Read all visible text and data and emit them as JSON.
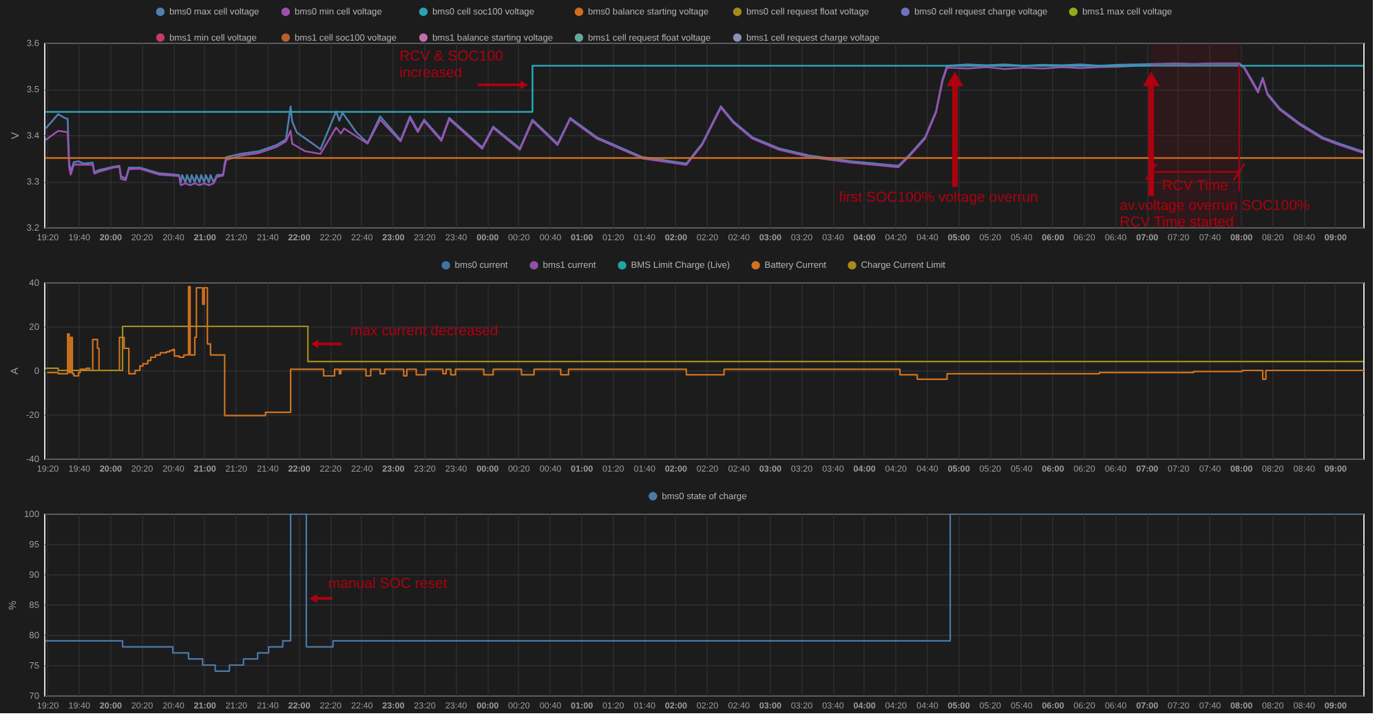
{
  "chart_data": [
    {
      "type": "line",
      "ylabel": "V",
      "xlim": [
        "2000-01-01T19:18",
        "2000-01-02T09:18"
      ],
      "ylim": [
        3.2,
        3.6
      ],
      "yticks": [
        3.2,
        3.3,
        3.4,
        3.5,
        3.6
      ],
      "xticks": [
        {
          "value": "2000-01-01T19:20",
          "label": "19:20"
        },
        {
          "value": "2000-01-01T19:40",
          "label": "19:40"
        },
        {
          "value": "2000-01-01T20:00",
          "label": "20:00"
        },
        {
          "value": "2000-01-01T20:20",
          "label": "20:20"
        },
        {
          "value": "2000-01-01T20:40",
          "label": "20:40"
        },
        {
          "value": "2000-01-01T21:00",
          "label": "21:00"
        },
        {
          "value": "2000-01-01T21:20",
          "label": "21:20"
        },
        {
          "value": "2000-01-01T21:40",
          "label": "21:40"
        },
        {
          "value": "2000-01-01T22:00",
          "label": "22:00"
        },
        {
          "value": "2000-01-01T22:20",
          "label": "22:20"
        },
        {
          "value": "2000-01-01T22:40",
          "label": "22:40"
        },
        {
          "value": "2000-01-01T23:00",
          "label": "23:00"
        },
        {
          "value": "2000-01-01T23:20",
          "label": "23:20"
        },
        {
          "value": "2000-01-01T23:40",
          "label": "23:40"
        },
        {
          "value": "2000-01-02T00:00",
          "label": "00:00"
        },
        {
          "value": "2000-01-02T00:20",
          "label": "00:20"
        },
        {
          "value": "2000-01-02T00:40",
          "label": "00:40"
        },
        {
          "value": "2000-01-02T01:00",
          "label": "01:00"
        },
        {
          "value": "2000-01-02T01:20",
          "label": "01:20"
        },
        {
          "value": "2000-01-02T01:40",
          "label": "01:40"
        },
        {
          "value": "2000-01-02T02:00",
          "label": "02:00"
        },
        {
          "value": "2000-01-02T02:20",
          "label": "02:20"
        },
        {
          "value": "2000-01-02T02:40",
          "label": "02:40"
        },
        {
          "value": "2000-01-02T03:00",
          "label": "03:00"
        },
        {
          "value": "2000-01-02T03:20",
          "label": "03:20"
        },
        {
          "value": "2000-01-02T03:40",
          "label": "03:40"
        },
        {
          "value": "2000-01-02T04:00",
          "label": "04:00"
        },
        {
          "value": "2000-01-02T04:20",
          "label": "04:20"
        },
        {
          "value": "2000-01-02T04:40",
          "label": "04:40"
        },
        {
          "value": "2000-01-02T05:00",
          "label": "05:00"
        },
        {
          "value": "2000-01-02T05:20",
          "label": "05:20"
        },
        {
          "value": "2000-01-02T05:40",
          "label": "05:40"
        },
        {
          "value": "2000-01-02T06:00",
          "label": "06:00"
        },
        {
          "value": "2000-01-02T06:20",
          "label": "06:20"
        },
        {
          "value": "2000-01-02T06:40",
          "label": "06:40"
        },
        {
          "value": "2000-01-02T07:00",
          "label": "07:00"
        },
        {
          "value": "2000-01-02T07:20",
          "label": "07:20"
        },
        {
          "value": "2000-01-02T07:40",
          "label": "07:40"
        },
        {
          "value": "2000-01-02T08:00",
          "label": "08:00"
        },
        {
          "value": "2000-01-02T08:20",
          "label": "08:20"
        },
        {
          "value": "2000-01-02T08:40",
          "label": "08:40"
        },
        {
          "value": "2000-01-02T09:00",
          "label": "09:00"
        }
      ],
      "grid": true,
      "legend": "top",
      "series": [
        {
          "name": "bms0 max cell voltage",
          "color": "#4f80b0",
          "x": [
            "2000-01-01T19:19",
            "2000-01-01T19:27",
            "2000-01-01T19:31",
            "2000-01-01T19:33",
            "2000-01-01T19:34",
            "2000-01-01T19:35",
            "2000-01-01T19:37",
            "2000-01-01T19:40",
            "2000-01-01T19:43",
            "2000-01-01T19:49",
            "2000-01-01T19:50",
            "2000-01-01T19:53",
            "2000-01-01T20:02",
            "2000-01-01T20:06",
            "2000-01-01T20:07",
            "2000-01-01T20:10",
            "2000-01-01T20:12",
            "2000-01-01T20:19",
            "2000-01-01T20:31",
            "2000-01-01T20:44",
            "2000-01-01T20:45",
            "2000-01-01T20:46",
            "2000-01-01T20:48",
            "2000-01-01T20:49",
            "2000-01-01T20:51",
            "2000-01-01T20:52",
            "2000-01-01T20:54",
            "2000-01-01T20:55",
            "2000-01-01T20:57",
            "2000-01-01T20:58",
            "2000-01-01T21:00",
            "2000-01-01T21:01",
            "2000-01-01T21:03",
            "2000-01-01T21:04",
            "2000-01-01T21:06",
            "2000-01-01T21:08",
            "2000-01-01T21:12",
            "2000-01-01T21:13",
            "2000-01-01T21:14",
            "2000-01-01T21:23",
            "2000-01-01T21:35",
            "2000-01-01T21:46",
            "2000-01-01T21:52",
            "2000-01-01T21:55",
            "2000-01-01T21:56",
            "2000-01-01T21:59",
            "2000-01-01T22:07",
            "2000-01-01T22:14",
            "2000-01-01T22:24",
            "2000-01-01T22:26",
            "2000-01-01T22:28",
            "2000-01-01T22:37",
            "2000-01-01T22:44",
            "2000-01-01T22:52",
            "2000-01-01T23:05",
            "2000-01-01T23:11",
            "2000-01-01T23:16",
            "2000-01-01T23:20",
            "2000-01-01T23:31",
            "2000-01-01T23:36",
            "2000-01-01T23:57",
            "2000-01-02T00:04",
            "2000-01-02T00:21",
            "2000-01-02T00:29",
            "2000-01-02T00:45",
            "2000-01-02T00:53",
            "2000-01-02T01:10",
            "2000-01-02T01:39",
            "2000-01-02T02:07",
            "2000-01-02T02:17",
            "2000-01-02T02:29",
            "2000-01-02T02:37",
            "2000-01-02T02:49",
            "2000-01-02T03:06",
            "2000-01-02T03:26",
            "2000-01-02T03:52",
            "2000-01-02T04:22",
            "2000-01-02T04:29",
            "2000-01-02T04:39",
            "2000-01-02T04:46",
            "2000-01-02T04:50",
            "2000-01-02T04:53",
            "2000-01-02T05:06",
            "2000-01-02T05:18",
            "2000-01-02T05:30",
            "2000-01-02T05:42",
            "2000-01-02T05:54",
            "2000-01-02T06:06",
            "2000-01-02T06:18",
            "2000-01-02T06:30",
            "2000-01-02T06:42",
            "2000-01-02T06:54",
            "2000-01-02T07:06",
            "2000-01-02T07:18",
            "2000-01-02T07:30",
            "2000-01-02T07:42",
            "2000-01-02T07:54",
            "2000-01-02T07:59",
            "2000-01-02T08:02",
            "2000-01-02T08:07",
            "2000-01-02T08:11",
            "2000-01-02T08:14",
            "2000-01-02T08:17",
            "2000-01-02T08:25",
            "2000-01-02T08:38",
            "2000-01-02T08:52",
            "2000-01-02T09:03",
            "2000-01-02T09:18"
          ],
          "values": [
            3.414,
            3.445,
            3.437,
            3.435,
            3.338,
            3.321,
            3.341,
            3.343,
            3.338,
            3.34,
            3.319,
            3.324,
            3.331,
            3.333,
            3.311,
            3.305,
            3.329,
            3.329,
            3.317,
            3.313,
            3.297,
            3.313,
            3.297,
            3.313,
            3.297,
            3.313,
            3.297,
            3.313,
            3.297,
            3.313,
            3.297,
            3.313,
            3.297,
            3.313,
            3.297,
            3.313,
            3.314,
            3.338,
            3.352,
            3.359,
            3.365,
            3.378,
            3.39,
            3.462,
            3.429,
            3.405,
            3.386,
            3.369,
            3.451,
            3.431,
            3.448,
            3.405,
            3.383,
            3.44,
            3.389,
            3.44,
            3.409,
            3.433,
            3.39,
            3.437,
            3.373,
            3.418,
            3.371,
            3.433,
            3.381,
            3.437,
            3.395,
            3.352,
            3.338,
            3.381,
            3.462,
            3.429,
            3.395,
            3.371,
            3.355,
            3.343,
            3.333,
            3.357,
            3.395,
            3.452,
            3.519,
            3.55,
            3.553,
            3.551,
            3.553,
            3.55,
            3.552,
            3.551,
            3.553,
            3.55,
            3.552,
            3.553,
            3.554,
            3.555,
            3.554,
            3.555,
            3.555,
            3.555,
            3.548,
            3.519,
            3.495,
            3.524,
            3.49,
            3.457,
            3.424,
            3.395,
            3.381,
            3.364
          ]
        },
        {
          "name": "bms0 min cell voltage",
          "color": "#9d4fb0",
          "x": [
            "2000-01-01T19:19",
            "2000-01-01T19:27",
            "2000-01-01T19:33",
            "2000-01-01T19:34",
            "2000-01-01T19:35",
            "2000-01-01T19:37",
            "2000-01-01T19:49",
            "2000-01-01T19:50",
            "2000-01-01T19:53",
            "2000-01-01T20:02",
            "2000-01-01T20:06",
            "2000-01-01T20:07",
            "2000-01-01T20:10",
            "2000-01-01T20:12",
            "2000-01-01T20:19",
            "2000-01-01T20:31",
            "2000-01-01T20:44",
            "2000-01-01T20:45",
            "2000-01-01T20:48",
            "2000-01-01T20:51",
            "2000-01-01T20:54",
            "2000-01-01T20:57",
            "2000-01-01T21:00",
            "2000-01-01T21:03",
            "2000-01-01T21:06",
            "2000-01-01T21:08",
            "2000-01-01T21:12",
            "2000-01-01T21:13",
            "2000-01-01T21:14",
            "2000-01-01T21:23",
            "2000-01-01T21:35",
            "2000-01-01T21:46",
            "2000-01-01T21:52",
            "2000-01-01T21:55",
            "2000-01-01T21:56",
            "2000-01-01T22:04",
            "2000-01-01T22:14",
            "2000-01-01T22:24",
            "2000-01-01T22:27",
            "2000-01-01T22:29",
            "2000-01-01T22:44",
            "2000-01-01T22:52",
            "2000-01-01T23:05",
            "2000-01-01T23:11",
            "2000-01-01T23:16",
            "2000-01-01T23:20",
            "2000-01-01T23:31",
            "2000-01-01T23:36",
            "2000-01-01T23:57",
            "2000-01-02T00:04",
            "2000-01-02T00:21",
            "2000-01-02T00:29",
            "2000-01-02T00:45",
            "2000-01-02T00:53",
            "2000-01-02T01:10",
            "2000-01-02T01:39",
            "2000-01-02T02:07",
            "2000-01-02T02:17",
            "2000-01-02T02:29",
            "2000-01-02T02:37",
            "2000-01-02T02:49",
            "2000-01-02T03:06",
            "2000-01-02T03:26",
            "2000-01-02T03:52",
            "2000-01-02T04:22",
            "2000-01-02T04:29",
            "2000-01-02T04:39",
            "2000-01-02T04:46",
            "2000-01-02T04:50",
            "2000-01-02T04:53",
            "2000-01-02T05:06",
            "2000-01-02T05:18",
            "2000-01-02T05:30",
            "2000-01-02T05:42",
            "2000-01-02T05:54",
            "2000-01-02T06:06",
            "2000-01-02T06:18",
            "2000-01-02T06:30",
            "2000-01-02T06:42",
            "2000-01-02T06:54",
            "2000-01-02T07:06",
            "2000-01-02T07:18",
            "2000-01-02T07:30",
            "2000-01-02T07:42",
            "2000-01-02T07:54",
            "2000-01-02T07:59",
            "2000-01-02T08:02",
            "2000-01-02T08:07",
            "2000-01-02T08:11",
            "2000-01-02T08:14",
            "2000-01-02T08:17",
            "2000-01-02T08:25",
            "2000-01-02T08:38",
            "2000-01-02T08:52",
            "2000-01-02T09:03",
            "2000-01-02T09:18"
          ],
          "values": [
            3.389,
            3.409,
            3.406,
            3.329,
            3.314,
            3.336,
            3.335,
            3.316,
            3.32,
            3.329,
            3.331,
            3.305,
            3.302,
            3.326,
            3.327,
            3.314,
            3.311,
            3.291,
            3.295,
            3.291,
            3.295,
            3.291,
            3.295,
            3.291,
            3.295,
            3.309,
            3.312,
            3.331,
            3.346,
            3.355,
            3.361,
            3.374,
            3.386,
            3.409,
            3.381,
            3.365,
            3.359,
            3.416,
            3.403,
            3.414,
            3.381,
            3.433,
            3.386,
            3.436,
            3.406,
            3.43,
            3.387,
            3.434,
            3.37,
            3.415,
            3.368,
            3.43,
            3.378,
            3.434,
            3.392,
            3.349,
            3.335,
            3.378,
            3.459,
            3.426,
            3.392,
            3.368,
            3.352,
            3.34,
            3.33,
            3.354,
            3.392,
            3.449,
            3.515,
            3.546,
            3.544,
            3.547,
            3.543,
            3.546,
            3.544,
            3.547,
            3.545,
            3.547,
            3.548,
            3.55,
            3.552,
            3.553,
            3.552,
            3.554,
            3.553,
            3.553,
            3.546,
            3.516,
            3.492,
            3.521,
            3.487,
            3.454,
            3.421,
            3.392,
            3.378,
            3.361
          ]
        },
        {
          "name": "bms0 cell soc100 voltage",
          "color": "#2aa3b3",
          "type": "step",
          "x": [
            "2000-01-01T19:19",
            "2000-01-02T00:29",
            "2000-01-02T09:18"
          ],
          "values": [
            3.45,
            3.55,
            3.55
          ]
        },
        {
          "name": "bms0 balance starting voltage",
          "color": "#cf6f1c",
          "x": [
            "2000-01-01T19:19",
            "2000-01-02T09:18"
          ],
          "values": [
            3.35,
            3.35
          ]
        },
        {
          "name": "bms0 cell request float voltage",
          "color": "#a58a1c"
        },
        {
          "name": "bms0 cell request charge voltage",
          "color": "#6f71c0"
        },
        {
          "name": "bms1 max cell voltage",
          "color": "#8fae1b"
        },
        {
          "name": "bms1 min cell voltage",
          "color": "#c33a6b"
        },
        {
          "name": "bms1 cell soc100 voltage",
          "color": "#b8602b"
        },
        {
          "name": "bms1 balance starting voltage",
          "color": "#c46cac"
        },
        {
          "name": "bms1 cell request float voltage",
          "color": "#61a89e"
        },
        {
          "name": "bms1 cell request charge voltage",
          "color": "#8a90b8"
        }
      ],
      "annotations": [
        {
          "text": "RCV & SOC100\nincreased",
          "x": "2000-01-02T00:29",
          "y": 3.5
        },
        {
          "text": "first SOC100% voltage overrun",
          "x": "2000-01-02T04:58",
          "y": 3.55
        },
        {
          "text": "av.voltage overrun SOC100%\nRCV Time started",
          "x": "2000-01-02T07:03",
          "y": 3.55
        }
      ],
      "bands": [
        {
          "axis": "x",
          "from": "2000-01-02T07:03",
          "to": "2000-01-02T07:59",
          "label": "RCV Time",
          "color": "#b0000e"
        }
      ]
    },
    {
      "type": "step",
      "ylabel": "A",
      "xlim": [
        "2000-01-01T19:18",
        "2000-01-02T09:18"
      ],
      "ylim": [
        -40,
        40
      ],
      "yticks": [
        -40,
        -20,
        0,
        20,
        40
      ],
      "xticks": [
        {
          "value": "2000-01-01T19:20",
          "label": "19:20"
        },
        {
          "value": "2000-01-01T19:40",
          "label": "19:40"
        },
        {
          "value": "2000-01-01T20:00",
          "label": "20:00"
        },
        {
          "value": "2000-01-01T20:20",
          "label": "20:20"
        },
        {
          "value": "2000-01-01T20:40",
          "label": "20:40"
        },
        {
          "value": "2000-01-01T21:00",
          "label": "21:00"
        },
        {
          "value": "2000-01-01T21:20",
          "label": "21:20"
        },
        {
          "value": "2000-01-01T21:40",
          "label": "21:40"
        },
        {
          "value": "2000-01-01T22:00",
          "label": "22:00"
        },
        {
          "value": "2000-01-01T22:20",
          "label": "22:20"
        },
        {
          "value": "2000-01-01T22:40",
          "label": "22:40"
        },
        {
          "value": "2000-01-01T23:00",
          "label": "23:00"
        },
        {
          "value": "2000-01-01T23:20",
          "label": "23:20"
        },
        {
          "value": "2000-01-01T23:40",
          "label": "23:40"
        },
        {
          "value": "2000-01-02T00:00",
          "label": "00:00"
        },
        {
          "value": "2000-01-02T00:20",
          "label": "00:20"
        },
        {
          "value": "2000-01-02T00:40",
          "label": "00:40"
        },
        {
          "value": "2000-01-02T01:00",
          "label": "01:00"
        },
        {
          "value": "2000-01-02T01:20",
          "label": "01:20"
        },
        {
          "value": "2000-01-02T01:40",
          "label": "01:40"
        },
        {
          "value": "2000-01-02T02:00",
          "label": "02:00"
        },
        {
          "value": "2000-01-02T02:20",
          "label": "02:20"
        },
        {
          "value": "2000-01-02T02:40",
          "label": "02:40"
        },
        {
          "value": "2000-01-02T03:00",
          "label": "03:00"
        },
        {
          "value": "2000-01-02T03:20",
          "label": "03:20"
        },
        {
          "value": "2000-01-02T03:40",
          "label": "03:40"
        },
        {
          "value": "2000-01-02T04:00",
          "label": "04:00"
        },
        {
          "value": "2000-01-02T04:20",
          "label": "04:20"
        },
        {
          "value": "2000-01-02T04:40",
          "label": "04:40"
        },
        {
          "value": "2000-01-02T05:00",
          "label": "05:00"
        },
        {
          "value": "2000-01-02T05:20",
          "label": "05:20"
        },
        {
          "value": "2000-01-02T05:40",
          "label": "05:40"
        },
        {
          "value": "2000-01-02T06:00",
          "label": "06:00"
        },
        {
          "value": "2000-01-02T06:20",
          "label": "06:20"
        },
        {
          "value": "2000-01-02T06:40",
          "label": "06:40"
        },
        {
          "value": "2000-01-02T07:00",
          "label": "07:00"
        },
        {
          "value": "2000-01-02T07:20",
          "label": "07:20"
        },
        {
          "value": "2000-01-02T07:40",
          "label": "07:40"
        },
        {
          "value": "2000-01-02T08:00",
          "label": "08:00"
        },
        {
          "value": "2000-01-02T08:20",
          "label": "08:20"
        },
        {
          "value": "2000-01-02T08:40",
          "label": "08:40"
        },
        {
          "value": "2000-01-02T09:00",
          "label": "09:00"
        }
      ],
      "grid": true,
      "legend": "top",
      "series": [
        {
          "name": "bms0 current",
          "color": "#4273a6"
        },
        {
          "name": "bms1 current",
          "color": "#9150a8"
        },
        {
          "name": "BMS Limit Charge (Live)",
          "color": "#23a3a6"
        },
        {
          "name": "Battery Current",
          "color": "#d0731f",
          "x": [
            "2000-01-01T19:20",
            "2000-01-01T19:27",
            "2000-01-01T19:33",
            "2000-01-01T19:34",
            "2000-01-01T19:35",
            "2000-01-01T19:36",
            "2000-01-01T19:37",
            "2000-01-01T19:40",
            "2000-01-01T19:41",
            "2000-01-01T19:45",
            "2000-01-01T19:47",
            "2000-01-01T19:49",
            "2000-01-01T19:52",
            "2000-01-01T19:53",
            "2000-01-01T20:06",
            "2000-01-01T20:09",
            "2000-01-01T20:12",
            "2000-01-01T20:16",
            "2000-01-01T20:19",
            "2000-01-01T20:21",
            "2000-01-01T20:24",
            "2000-01-01T20:26",
            "2000-01-01T20:29",
            "2000-01-01T20:32",
            "2000-01-01T20:36",
            "2000-01-01T20:38",
            "2000-01-01T20:40",
            "2000-01-01T20:41",
            "2000-01-01T20:44",
            "2000-01-01T20:47",
            "2000-01-01T20:50",
            "2000-01-01T20:51",
            "2000-01-01T20:54",
            "2000-01-01T20:55",
            "2000-01-01T20:59",
            "2000-01-01T21:00",
            "2000-01-01T21:02",
            "2000-01-01T21:04",
            "2000-01-01T21:13",
            "2000-01-01T21:39",
            "2000-01-01T21:55",
            "2000-01-01T22:16",
            "2000-01-01T22:23",
            "2000-01-01T22:26",
            "2000-01-01T22:27",
            "2000-01-01T22:43",
            "2000-01-01T22:46",
            "2000-01-01T22:52",
            "2000-01-01T22:55",
            "2000-01-01T23:07",
            "2000-01-01T23:09",
            "2000-01-01T23:15",
            "2000-01-01T23:21",
            "2000-01-01T23:32",
            "2000-01-01T23:34",
            "2000-01-01T23:37",
            "2000-01-01T23:40",
            "2000-01-01T23:58",
            "2000-01-02T00:04",
            "2000-01-02T00:22",
            "2000-01-02T00:30",
            "2000-01-02T00:47",
            "2000-01-02T00:52",
            "2000-01-02T02:07",
            "2000-01-02T02:31",
            "2000-01-02T04:23",
            "2000-01-02T04:34",
            "2000-01-02T04:53",
            "2000-01-02T06:30",
            "2000-01-02T07:30",
            "2000-01-02T08:01",
            "2000-01-02T08:14",
            "2000-01-02T08:16",
            "2000-01-02T09:18"
          ],
          "values": [
            -1,
            -1.5,
            16.5,
            -1,
            15,
            -1.5,
            -2.5,
            -1,
            0.5,
            1,
            0,
            14,
            10,
            0,
            15,
            10,
            -1.5,
            0,
            2,
            3,
            4.5,
            6,
            7,
            8,
            8.5,
            9,
            9.5,
            6.5,
            6,
            7,
            38,
            7,
            15,
            37.5,
            30,
            37.5,
            12,
            7,
            -20.5,
            -19,
            0.5,
            -2.5,
            0.5,
            -1.5,
            0.5,
            -2.5,
            0.5,
            -1.5,
            0.5,
            -2.5,
            0.5,
            -2,
            0.5,
            -1.5,
            0.5,
            -2,
            0.5,
            -2,
            0.5,
            -2,
            0.5,
            -2,
            0.5,
            -2,
            0.5,
            -2,
            -4,
            -1.5,
            -1,
            -0.5,
            0,
            -4,
            0,
            0
          ]
        },
        {
          "name": "Charge Current Limit",
          "color": "#a88c18",
          "x": [
            "2000-01-01T19:19",
            "2000-01-01T19:27",
            "2000-01-01T20:08",
            "2000-01-01T22:06",
            "2000-01-02T09:18"
          ],
          "values": [
            1,
            0,
            20,
            4,
            4
          ]
        }
      ],
      "annotations": [
        {
          "text": "max current decreased",
          "x": "2000-01-01T22:05",
          "y": 12
        }
      ]
    },
    {
      "type": "step",
      "ylabel": "%",
      "xlim": [
        "2000-01-01T19:18",
        "2000-01-02T09:18"
      ],
      "ylim": [
        70,
        100
      ],
      "yticks": [
        70,
        75,
        80,
        85,
        90,
        95,
        100
      ],
      "xticks": [
        {
          "value": "2000-01-01T19:20",
          "label": "19:20"
        },
        {
          "value": "2000-01-01T19:40",
          "label": "19:40"
        },
        {
          "value": "2000-01-01T20:00",
          "label": "20:00"
        },
        {
          "value": "2000-01-01T20:20",
          "label": "20:20"
        },
        {
          "value": "2000-01-01T20:40",
          "label": "20:40"
        },
        {
          "value": "2000-01-01T21:00",
          "label": "21:00"
        },
        {
          "value": "2000-01-01T21:20",
          "label": "21:20"
        },
        {
          "value": "2000-01-01T21:40",
          "label": "21:40"
        },
        {
          "value": "2000-01-01T22:00",
          "label": "22:00"
        },
        {
          "value": "2000-01-01T22:20",
          "label": "22:20"
        },
        {
          "value": "2000-01-01T22:40",
          "label": "22:40"
        },
        {
          "value": "2000-01-01T23:00",
          "label": "23:00"
        },
        {
          "value": "2000-01-01T23:20",
          "label": "23:20"
        },
        {
          "value": "2000-01-01T23:40",
          "label": "23:40"
        },
        {
          "value": "2000-01-02T00:00",
          "label": "00:00"
        },
        {
          "value": "2000-01-02T00:20",
          "label": "00:20"
        },
        {
          "value": "2000-01-02T00:40",
          "label": "00:40"
        },
        {
          "value": "2000-01-02T01:00",
          "label": "01:00"
        },
        {
          "value": "2000-01-02T01:20",
          "label": "01:20"
        },
        {
          "value": "2000-01-02T01:40",
          "label": "01:40"
        },
        {
          "value": "2000-01-02T02:00",
          "label": "02:00"
        },
        {
          "value": "2000-01-02T02:20",
          "label": "02:20"
        },
        {
          "value": "2000-01-02T02:40",
          "label": "02:40"
        },
        {
          "value": "2000-01-02T03:00",
          "label": "03:00"
        },
        {
          "value": "2000-01-02T03:20",
          "label": "03:20"
        },
        {
          "value": "2000-01-02T03:40",
          "label": "03:40"
        },
        {
          "value": "2000-01-02T04:00",
          "label": "04:00"
        },
        {
          "value": "2000-01-02T04:20",
          "label": "04:20"
        },
        {
          "value": "2000-01-02T04:40",
          "label": "04:40"
        },
        {
          "value": "2000-01-02T05:00",
          "label": "05:00"
        },
        {
          "value": "2000-01-02T05:20",
          "label": "05:20"
        },
        {
          "value": "2000-01-02T05:40",
          "label": "05:40"
        },
        {
          "value": "2000-01-02T06:00",
          "label": "06:00"
        },
        {
          "value": "2000-01-02T06:20",
          "label": "06:20"
        },
        {
          "value": "2000-01-02T06:40",
          "label": "06:40"
        },
        {
          "value": "2000-01-02T07:00",
          "label": "07:00"
        },
        {
          "value": "2000-01-02T07:20",
          "label": "07:20"
        },
        {
          "value": "2000-01-02T07:40",
          "label": "07:40"
        },
        {
          "value": "2000-01-02T08:00",
          "label": "08:00"
        },
        {
          "value": "2000-01-02T08:20",
          "label": "08:20"
        },
        {
          "value": "2000-01-02T08:40",
          "label": "08:40"
        },
        {
          "value": "2000-01-02T09:00",
          "label": "09:00"
        }
      ],
      "grid": true,
      "legend": "top",
      "series": [
        {
          "name": "bms0 state of charge",
          "color": "#4a7aa8",
          "x": [
            "2000-01-01T19:19",
            "2000-01-01T20:08",
            "2000-01-01T20:40",
            "2000-01-01T20:50",
            "2000-01-01T20:59",
            "2000-01-01T21:07",
            "2000-01-01T21:16",
            "2000-01-01T21:25",
            "2000-01-01T21:34",
            "2000-01-01T21:41",
            "2000-01-01T21:50",
            "2000-01-01T21:55",
            "2000-01-01T22:05",
            "2000-01-01T22:22",
            "2000-01-02T04:55",
            "2000-01-02T09:18"
          ],
          "values": [
            79,
            78,
            77,
            76,
            75,
            74,
            75,
            76,
            77,
            78,
            79,
            100,
            78,
            79,
            100,
            100
          ]
        }
      ],
      "annotations": [
        {
          "text": "manual SOC reset",
          "x": "2000-01-01T22:05",
          "y": 86
        }
      ]
    }
  ]
}
